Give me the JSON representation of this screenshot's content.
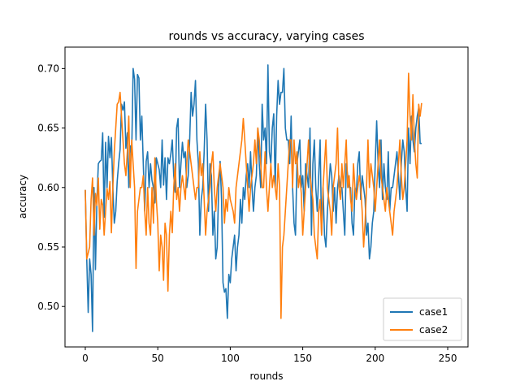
{
  "chart_data": {
    "type": "line",
    "title": "rounds vs accuracy, varying cases",
    "xlabel": "rounds",
    "ylabel": "accuracy",
    "xlim": [
      -14,
      264
    ],
    "ylim": [
      0.466,
      0.718
    ],
    "xticks": [
      0,
      50,
      100,
      150,
      200,
      250
    ],
    "yticks": [
      0.5,
      0.55,
      0.6,
      0.65,
      0.7
    ],
    "ytick_labels": [
      "0.50",
      "0.55",
      "0.60",
      "0.65",
      "0.70"
    ],
    "legend_position": "lower-right",
    "series": [
      {
        "name": "case1",
        "color": "#1f77b4",
        "values": [
          0.598,
          0.54,
          0.495,
          0.54,
          0.527,
          0.479,
          0.6,
          0.531,
          0.588,
          0.62,
          0.622,
          0.623,
          0.646,
          0.575,
          0.638,
          0.6,
          0.643,
          0.625,
          0.642,
          0.6,
          0.57,
          0.58,
          0.605,
          0.62,
          0.632,
          0.67,
          0.665,
          0.672,
          0.633,
          0.646,
          0.6,
          0.635,
          0.628,
          0.7,
          0.691,
          0.64,
          0.695,
          0.692,
          0.64,
          0.66,
          0.62,
          0.58,
          0.622,
          0.63,
          0.6,
          0.62,
          0.606,
          0.6,
          0.587,
          0.625,
          0.62,
          0.615,
          0.6,
          0.64,
          0.602,
          0.625,
          0.59,
          0.625,
          0.62,
          0.628,
          0.64,
          0.61,
          0.596,
          0.65,
          0.658,
          0.6,
          0.62,
          0.638,
          0.625,
          0.63,
          0.6,
          0.61,
          0.64,
          0.68,
          0.66,
          0.67,
          0.69,
          0.64,
          0.62,
          0.56,
          0.59,
          0.6,
          0.63,
          0.67,
          0.64,
          0.58,
          0.62,
          0.61,
          0.56,
          0.58,
          0.54,
          0.55,
          0.6,
          0.622,
          0.59,
          0.52,
          0.512,
          0.515,
          0.49,
          0.527,
          0.52,
          0.54,
          0.55,
          0.56,
          0.53,
          0.55,
          0.56,
          0.59,
          0.57,
          0.6,
          0.59,
          0.61,
          0.62,
          0.6,
          0.63,
          0.6,
          0.58,
          0.6,
          0.61,
          0.65,
          0.62,
          0.6,
          0.67,
          0.64,
          0.65,
          0.62,
          0.703,
          0.63,
          0.62,
          0.65,
          0.662,
          0.6,
          0.66,
          0.69,
          0.67,
          0.68,
          0.68,
          0.7,
          0.65,
          0.64,
          0.64,
          0.62,
          0.66,
          0.6,
          0.57,
          0.56,
          0.62,
          0.63,
          0.64,
          0.6,
          0.61,
          0.58,
          0.62,
          0.61,
          0.6,
          0.65,
          0.56,
          0.62,
          0.64,
          0.6,
          0.58,
          0.61,
          0.64,
          0.56,
          0.6,
          0.56,
          0.55,
          0.58,
          0.6,
          0.62,
          0.61,
          0.58,
          0.6,
          0.57,
          0.6,
          0.61,
          0.6,
          0.6,
          0.58,
          0.56,
          0.62,
          0.61,
          0.6,
          0.6,
          0.57,
          0.56,
          0.6,
          0.595,
          0.62,
          0.63,
          0.59,
          0.61,
          0.6,
          0.59,
          0.56,
          0.57,
          0.54,
          0.55,
          0.57,
          0.58,
          0.62,
          0.656,
          0.62,
          0.6,
          0.64,
          0.59,
          0.62,
          0.6,
          0.59,
          0.63,
          0.58,
          0.6,
          0.6,
          0.61,
          0.62,
          0.63,
          0.61,
          0.59,
          0.62,
          0.64,
          0.63,
          0.6,
          0.58,
          0.65,
          0.62,
          0.66,
          0.64,
          0.63,
          0.65,
          0.66,
          0.667,
          0.637,
          0.637
        ]
      },
      {
        "name": "case2",
        "color": "#ff7f0e",
        "values": [
          0.598,
          0.54,
          0.545,
          0.55,
          0.59,
          0.608,
          0.56,
          0.595,
          0.585,
          0.608,
          0.565,
          0.59,
          0.585,
          0.56,
          0.58,
          0.599,
          0.59,
          0.605,
          0.562,
          0.6,
          0.63,
          0.65,
          0.67,
          0.672,
          0.68,
          0.66,
          0.64,
          0.62,
          0.61,
          0.63,
          0.66,
          0.6,
          0.64,
          0.62,
          0.6,
          0.532,
          0.58,
          0.59,
          0.6,
          0.6,
          0.61,
          0.58,
          0.56,
          0.6,
          0.57,
          0.56,
          0.6,
          0.57,
          0.625,
          0.59,
          0.57,
          0.53,
          0.56,
          0.55,
          0.522,
          0.57,
          0.56,
          0.513,
          0.56,
          0.58,
          0.562,
          0.6,
          0.62,
          0.59,
          0.6,
          0.58,
          0.6,
          0.61,
          0.6,
          0.59,
          0.62,
          0.64,
          0.63,
          0.62,
          0.61,
          0.6,
          0.59,
          0.6,
          0.6,
          0.63,
          0.61,
          0.62,
          0.59,
          0.56,
          0.58,
          0.59,
          0.6,
          0.62,
          0.63,
          0.6,
          0.58,
          0.6,
          0.61,
          0.62,
          0.61,
          0.6,
          0.57,
          0.59,
          0.58,
          0.6,
          0.59,
          0.585,
          0.58,
          0.57,
          0.6,
          0.61,
          0.62,
          0.63,
          0.64,
          0.658,
          0.64,
          0.62,
          0.6,
          0.58,
          0.6,
          0.61,
          0.62,
          0.64,
          0.62,
          0.65,
          0.64,
          0.62,
          0.6,
          0.6,
          0.63,
          0.6,
          0.58,
          0.6,
          0.62,
          0.6,
          0.61,
          0.6,
          0.59,
          0.62,
          0.6,
          0.49,
          0.55,
          0.56,
          0.58,
          0.6,
          0.62,
          0.64,
          0.64,
          0.6,
          0.64,
          0.62,
          0.63,
          0.6,
          0.61,
          0.595,
          0.56,
          0.58,
          0.6,
          0.62,
          0.64,
          0.61,
          0.6,
          0.59,
          0.56,
          0.55,
          0.54,
          0.58,
          0.59,
          0.56,
          0.6,
          0.62,
          0.64,
          0.6,
          0.59,
          0.58,
          0.56,
          0.6,
          0.61,
          0.62,
          0.65,
          0.6,
          0.59,
          0.62,
          0.6,
          0.62,
          0.64,
          0.6,
          0.61,
          0.59,
          0.58,
          0.62,
          0.6,
          0.59,
          0.6,
          0.61,
          0.6,
          0.58,
          0.55,
          0.57,
          0.6,
          0.64,
          0.6,
          0.62,
          0.61,
          0.6,
          0.58,
          0.6,
          0.62,
          0.64,
          0.61,
          0.6,
          0.59,
          0.58,
          0.6,
          0.59,
          0.58,
          0.57,
          0.56,
          0.58,
          0.59,
          0.6,
          0.62,
          0.64,
          0.61,
          0.59,
          0.6,
          0.62,
          0.64,
          0.696,
          0.66,
          0.64,
          0.678,
          0.64,
          0.62,
          0.608,
          0.67,
          0.66,
          0.671
        ]
      }
    ]
  }
}
